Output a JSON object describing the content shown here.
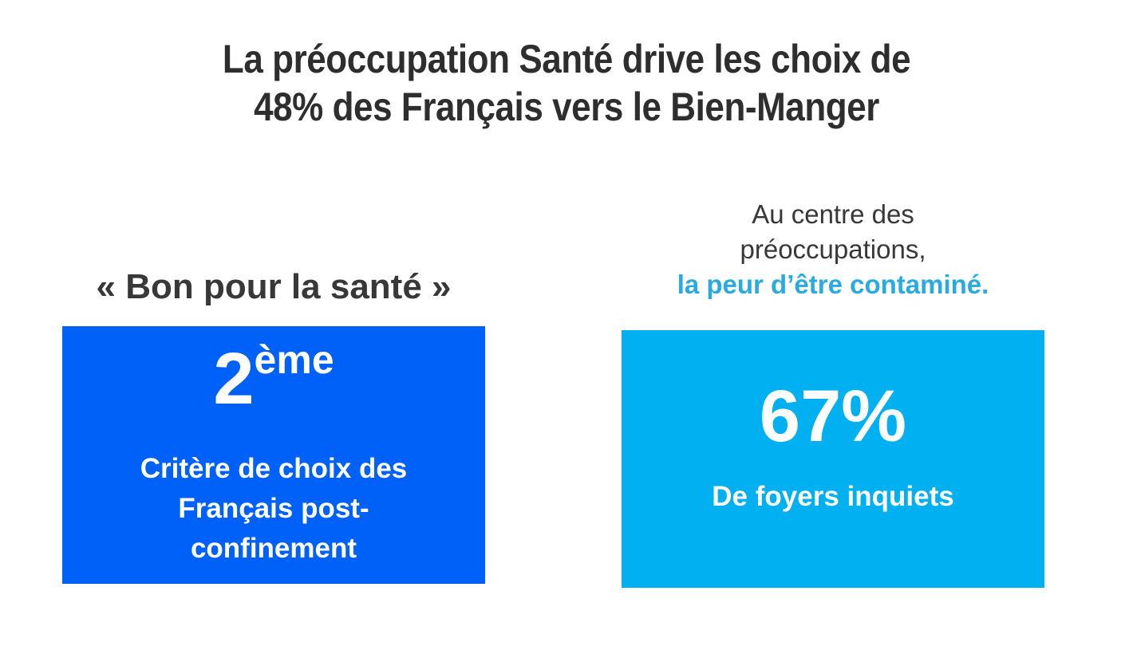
{
  "slide": {
    "title_lines": [
      "La préoccupation Santé drive les choix de",
      "48% des Français vers le Bien-Manger"
    ]
  },
  "left_panel": {
    "heading": "« Bon pour la santé »",
    "rank_value": "2",
    "rank_suffix": "ème",
    "description_lines": [
      "Critère de choix des",
      "Français post-",
      "confinement"
    ]
  },
  "right_panel": {
    "heading_lines": [
      "Au centre des",
      "préoccupations,"
    ],
    "heading_highlight": "la peur d’être contaminé.",
    "stat_value": "67%",
    "description": "De foyers inquiets"
  },
  "colors": {
    "background": "#FFFFFF",
    "title_text": "#2E2E2E",
    "heading_text": "#383838",
    "left_box_bg": "#0061F8",
    "right_box_bg": "#00B0F0",
    "highlight_text": "#29ABE2",
    "box_text": "#FFFFFF"
  }
}
